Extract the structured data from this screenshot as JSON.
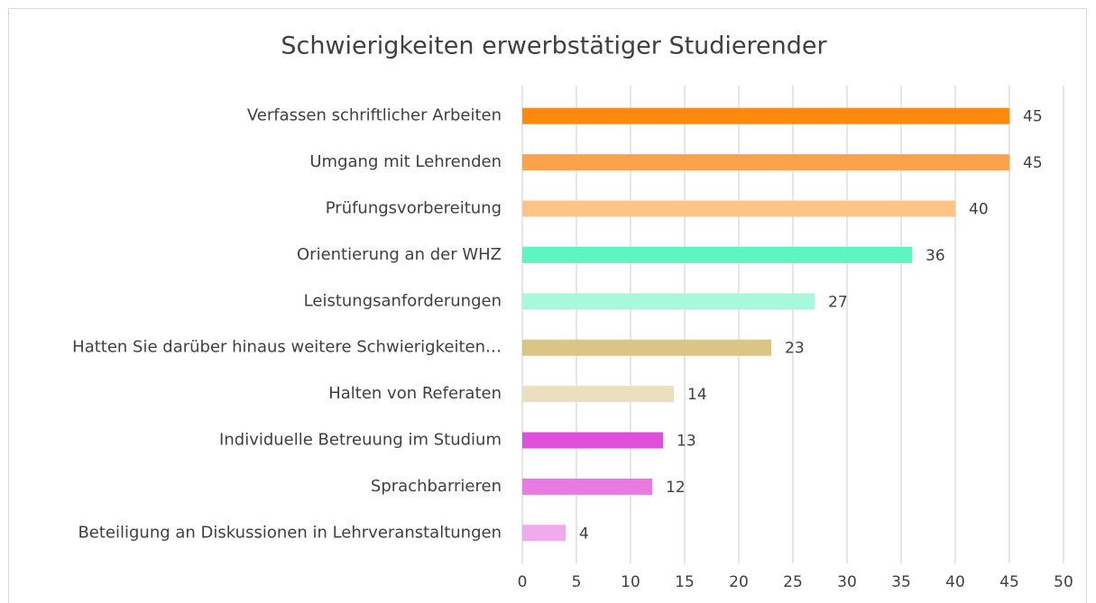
{
  "chart_data": {
    "type": "barh",
    "title": "Schwierigkeiten erwerbstätiger Studierender",
    "categories": [
      "Verfassen schriftlicher Arbeiten",
      "Umgang mit Lehrenden",
      "Prüfungsvorbereitung",
      "Orientierung an der WHZ",
      "Leistungsanforderungen",
      "Hatten Sie darüber hinaus weitere Schwierigkeiten…",
      "Halten von Referaten",
      "Individuelle Betreuung im Studium",
      "Sprachbarrieren",
      "Beteiligung an Diskussionen in Lehrveranstaltungen"
    ],
    "values": [
      45,
      45,
      40,
      36,
      27,
      23,
      14,
      13,
      12,
      4
    ],
    "colors": [
      "#fd8a0d",
      "#fda24c",
      "#fec385",
      "#5ef5c1",
      "#a8f8dc",
      "#dbc584",
      "#ecdfbe",
      "#e04fd9",
      "#e87ae1",
      "#f0a9ec"
    ],
    "xlim": [
      0,
      50
    ],
    "xticks": [
      0,
      5,
      10,
      15,
      20,
      25,
      30,
      35,
      40,
      45,
      50
    ],
    "grid": true
  }
}
